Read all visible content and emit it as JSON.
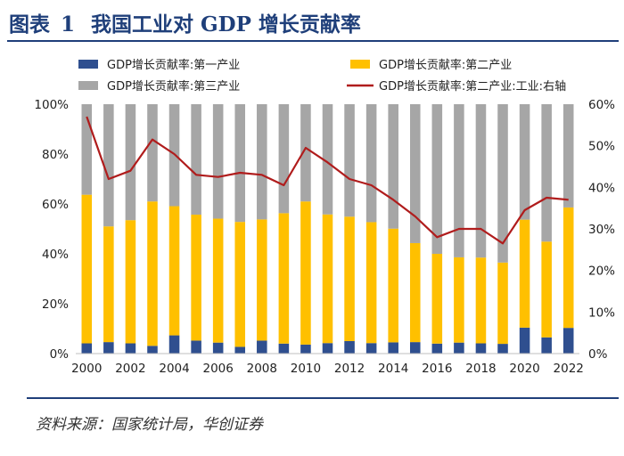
{
  "header": {
    "figure_label": "图表",
    "figure_number": "1",
    "title": "我国工业对 GDP 增长贡献率"
  },
  "footer": {
    "source": "资料来源：国家统计局，华创证券"
  },
  "chart_data": {
    "type": "bar",
    "stacked": true,
    "title": "我国工业对 GDP 增长贡献率",
    "x": [
      2000,
      2001,
      2002,
      2003,
      2004,
      2005,
      2006,
      2007,
      2008,
      2009,
      2010,
      2011,
      2012,
      2013,
      2014,
      2015,
      2016,
      2017,
      2018,
      2019,
      2020,
      2021,
      2022
    ],
    "x_tick_labels": [
      "2000",
      "2002",
      "2004",
      "2006",
      "2008",
      "2010",
      "2012",
      "2014",
      "2016",
      "2018",
      "2020",
      "2022"
    ],
    "y_left": {
      "min": 0,
      "max": 100,
      "ticks": [
        "0%",
        "20%",
        "40%",
        "60%",
        "80%",
        "100%"
      ]
    },
    "y_right": {
      "min": 0,
      "max": 60,
      "ticks": [
        "0%",
        "10%",
        "20%",
        "30%",
        "40%",
        "50%",
        "60%"
      ]
    },
    "grid": false,
    "legend_position": "top",
    "colors": {
      "primary": "#2f4f8f",
      "secondary": "#ffc000",
      "tertiary": "#a6a6a6",
      "line": "#b01c1c"
    },
    "series": [
      {
        "name": "GDP增长贡献率:第一产业",
        "kind": "bar",
        "axis": "left",
        "color": "#2f4f8f",
        "values": [
          4.1,
          4.6,
          4.1,
          3.1,
          7.3,
          5.2,
          4.4,
          2.7,
          5.2,
          4.0,
          3.6,
          4.2,
          5.0,
          4.2,
          4.5,
          4.6,
          4.0,
          4.4,
          4.1,
          3.9,
          10.4,
          6.5,
          10.3
        ]
      },
      {
        "name": "GDP增长贡献率:第二产业",
        "kind": "bar",
        "axis": "left",
        "color": "#ffc000",
        "values": [
          59.6,
          46.4,
          49.4,
          57.9,
          51.8,
          50.5,
          49.7,
          50.1,
          48.6,
          52.3,
          57.4,
          51.6,
          49.9,
          48.5,
          45.6,
          39.7,
          36.0,
          34.2,
          34.4,
          32.6,
          43.3,
          38.4,
          48.3
        ]
      },
      {
        "name": "GDP增长贡献率:第三产业",
        "kind": "bar",
        "axis": "left",
        "color": "#a6a6a6",
        "values": [
          36.3,
          49.0,
          46.5,
          39.0,
          40.9,
          44.3,
          45.9,
          47.2,
          46.2,
          43.7,
          39.0,
          44.2,
          45.1,
          47.3,
          49.9,
          55.7,
          60.0,
          61.4,
          61.5,
          63.5,
          46.3,
          55.1,
          41.4
        ]
      },
      {
        "name": "GDP增长贡献率:第二产业:工业:右轴",
        "kind": "line",
        "axis": "right",
        "color": "#b01c1c",
        "values": [
          57.0,
          42.0,
          44.0,
          51.5,
          48.0,
          43.0,
          42.5,
          43.5,
          43.0,
          40.5,
          49.5,
          46.0,
          42.0,
          40.5,
          37.0,
          33.0,
          28.0,
          30.0,
          30.0,
          26.5,
          34.5,
          37.5,
          37.0
        ]
      }
    ]
  }
}
